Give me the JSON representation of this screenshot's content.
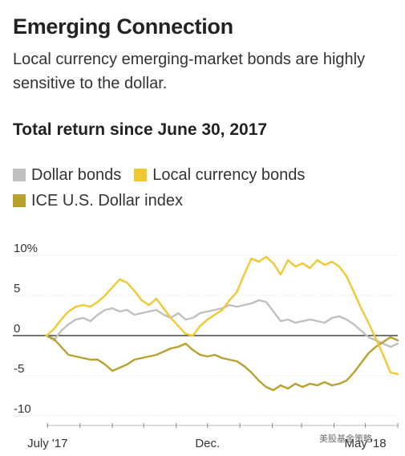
{
  "header": {
    "title": "Emerging Connection",
    "subtitle": "Local currency emerging-market bonds are highly sensitive to the dollar.",
    "chart_heading": "Total return since June 30, 2017"
  },
  "watermark": "美股基金策略",
  "colors": {
    "dollar_bonds": "#c0c0c0",
    "local_currency_bonds": "#f0c832",
    "dollar_index": "#b8a02e"
  },
  "chart_data": {
    "type": "line",
    "title": "Total return since June 30, 2017",
    "xlabel": "",
    "ylabel": "",
    "x_ticks": [
      "July '17",
      "Dec.",
      "May '18"
    ],
    "y_ticks": [
      "10%",
      "5",
      "0",
      "-5",
      "-10"
    ],
    "ylim": [
      -10,
      10
    ],
    "xlim": [
      "2017-06-30",
      "2018-06-01"
    ],
    "grid": false,
    "legend_placement": "top",
    "series": [
      {
        "name": "Dollar bonds",
        "color": "#c0c0c0",
        "points": [
          [
            "2017-06-30",
            0.0
          ],
          [
            "2017-07-07",
            -0.6
          ],
          [
            "2017-07-14",
            0.6
          ],
          [
            "2017-07-21",
            1.4
          ],
          [
            "2017-07-28",
            2.0
          ],
          [
            "2017-08-04",
            2.2
          ],
          [
            "2017-08-11",
            1.8
          ],
          [
            "2017-08-18",
            2.6
          ],
          [
            "2017-08-25",
            3.2
          ],
          [
            "2017-09-01",
            3.4
          ],
          [
            "2017-09-08",
            3.0
          ],
          [
            "2017-09-15",
            3.2
          ],
          [
            "2017-09-22",
            2.6
          ],
          [
            "2017-09-29",
            2.8
          ],
          [
            "2017-10-06",
            3.0
          ],
          [
            "2017-10-13",
            3.2
          ],
          [
            "2017-10-20",
            2.6
          ],
          [
            "2017-10-27",
            2.2
          ],
          [
            "2017-11-03",
            2.8
          ],
          [
            "2017-11-10",
            2.0
          ],
          [
            "2017-11-17",
            2.2
          ],
          [
            "2017-11-24",
            2.8
          ],
          [
            "2017-12-01",
            3.0
          ],
          [
            "2017-12-08",
            3.2
          ],
          [
            "2017-12-15",
            3.4
          ],
          [
            "2017-12-22",
            3.8
          ],
          [
            "2017-12-29",
            3.6
          ],
          [
            "2018-01-05",
            3.8
          ],
          [
            "2018-01-12",
            4.0
          ],
          [
            "2018-01-19",
            4.4
          ],
          [
            "2018-01-26",
            4.2
          ],
          [
            "2018-02-02",
            3.0
          ],
          [
            "2018-02-09",
            1.8
          ],
          [
            "2018-02-16",
            2.0
          ],
          [
            "2018-02-23",
            1.6
          ],
          [
            "2018-03-02",
            1.8
          ],
          [
            "2018-03-09",
            2.0
          ],
          [
            "2018-03-16",
            1.8
          ],
          [
            "2018-03-23",
            1.6
          ],
          [
            "2018-03-30",
            2.2
          ],
          [
            "2018-04-06",
            2.4
          ],
          [
            "2018-04-13",
            2.0
          ],
          [
            "2018-04-20",
            1.4
          ],
          [
            "2018-04-27",
            0.6
          ],
          [
            "2018-05-04",
            -0.2
          ],
          [
            "2018-05-11",
            -0.6
          ],
          [
            "2018-05-18",
            -1.0
          ],
          [
            "2018-05-25",
            -1.4
          ],
          [
            "2018-06-01",
            -1.0
          ]
        ]
      },
      {
        "name": "Local currency bonds",
        "color": "#f0c832",
        "points": [
          [
            "2017-06-30",
            0.0
          ],
          [
            "2017-07-07",
            0.8
          ],
          [
            "2017-07-14",
            2.0
          ],
          [
            "2017-07-21",
            3.0
          ],
          [
            "2017-07-28",
            3.6
          ],
          [
            "2017-08-04",
            3.8
          ],
          [
            "2017-08-11",
            3.6
          ],
          [
            "2017-08-18",
            4.2
          ],
          [
            "2017-08-25",
            5.0
          ],
          [
            "2017-09-01",
            6.0
          ],
          [
            "2017-09-08",
            7.0
          ],
          [
            "2017-09-15",
            6.6
          ],
          [
            "2017-09-22",
            5.6
          ],
          [
            "2017-09-29",
            4.4
          ],
          [
            "2017-10-06",
            3.8
          ],
          [
            "2017-10-13",
            4.6
          ],
          [
            "2017-10-20",
            3.4
          ],
          [
            "2017-10-27",
            2.2
          ],
          [
            "2017-11-03",
            1.2
          ],
          [
            "2017-11-10",
            0.2
          ],
          [
            "2017-11-17",
            0.0
          ],
          [
            "2017-11-24",
            1.2
          ],
          [
            "2017-12-01",
            2.0
          ],
          [
            "2017-12-08",
            2.6
          ],
          [
            "2017-12-15",
            3.2
          ],
          [
            "2017-12-22",
            4.4
          ],
          [
            "2017-12-29",
            5.4
          ],
          [
            "2018-01-05",
            7.6
          ],
          [
            "2018-01-12",
            9.6
          ],
          [
            "2018-01-19",
            9.2
          ],
          [
            "2018-01-26",
            9.8
          ],
          [
            "2018-02-02",
            9.0
          ],
          [
            "2018-02-09",
            7.6
          ],
          [
            "2018-02-16",
            9.4
          ],
          [
            "2018-02-23",
            8.6
          ],
          [
            "2018-03-02",
            9.0
          ],
          [
            "2018-03-09",
            8.4
          ],
          [
            "2018-03-16",
            9.4
          ],
          [
            "2018-03-23",
            8.8
          ],
          [
            "2018-03-30",
            9.2
          ],
          [
            "2018-04-06",
            8.6
          ],
          [
            "2018-04-13",
            7.4
          ],
          [
            "2018-04-20",
            5.4
          ],
          [
            "2018-04-27",
            3.4
          ],
          [
            "2018-05-04",
            1.6
          ],
          [
            "2018-05-11",
            -0.4
          ],
          [
            "2018-05-18",
            -2.4
          ],
          [
            "2018-05-25",
            -4.6
          ],
          [
            "2018-06-01",
            -4.8
          ]
        ]
      },
      {
        "name": "ICE U.S. Dollar index",
        "color": "#b8a02e",
        "points": [
          [
            "2017-06-30",
            0.0
          ],
          [
            "2017-07-07",
            -0.4
          ],
          [
            "2017-07-14",
            -1.4
          ],
          [
            "2017-07-21",
            -2.4
          ],
          [
            "2017-07-28",
            -2.6
          ],
          [
            "2017-08-04",
            -2.8
          ],
          [
            "2017-08-11",
            -3.0
          ],
          [
            "2017-08-18",
            -3.0
          ],
          [
            "2017-08-25",
            -3.6
          ],
          [
            "2017-09-01",
            -4.4
          ],
          [
            "2017-09-08",
            -4.0
          ],
          [
            "2017-09-15",
            -3.6
          ],
          [
            "2017-09-22",
            -3.0
          ],
          [
            "2017-09-29",
            -2.8
          ],
          [
            "2017-10-06",
            -2.6
          ],
          [
            "2017-10-13",
            -2.4
          ],
          [
            "2017-10-20",
            -2.0
          ],
          [
            "2017-10-27",
            -1.6
          ],
          [
            "2017-11-03",
            -1.4
          ],
          [
            "2017-11-10",
            -1.0
          ],
          [
            "2017-11-17",
            -1.8
          ],
          [
            "2017-11-24",
            -2.4
          ],
          [
            "2017-12-01",
            -2.6
          ],
          [
            "2017-12-08",
            -2.4
          ],
          [
            "2017-12-15",
            -2.8
          ],
          [
            "2017-12-22",
            -3.0
          ],
          [
            "2017-12-29",
            -3.2
          ],
          [
            "2018-01-05",
            -3.8
          ],
          [
            "2018-01-12",
            -4.6
          ],
          [
            "2018-01-19",
            -5.6
          ],
          [
            "2018-01-26",
            -6.4
          ],
          [
            "2018-02-02",
            -6.8
          ],
          [
            "2018-02-09",
            -6.2
          ],
          [
            "2018-02-16",
            -6.6
          ],
          [
            "2018-02-23",
            -6.0
          ],
          [
            "2018-03-02",
            -6.4
          ],
          [
            "2018-03-09",
            -6.0
          ],
          [
            "2018-03-16",
            -6.2
          ],
          [
            "2018-03-23",
            -5.8
          ],
          [
            "2018-03-30",
            -6.2
          ],
          [
            "2018-04-06",
            -6.0
          ],
          [
            "2018-04-13",
            -5.6
          ],
          [
            "2018-04-20",
            -4.6
          ],
          [
            "2018-04-27",
            -3.4
          ],
          [
            "2018-05-04",
            -2.2
          ],
          [
            "2018-05-11",
            -1.4
          ],
          [
            "2018-05-18",
            -0.8
          ],
          [
            "2018-05-25",
            -0.2
          ],
          [
            "2018-06-01",
            -0.6
          ]
        ]
      }
    ]
  }
}
